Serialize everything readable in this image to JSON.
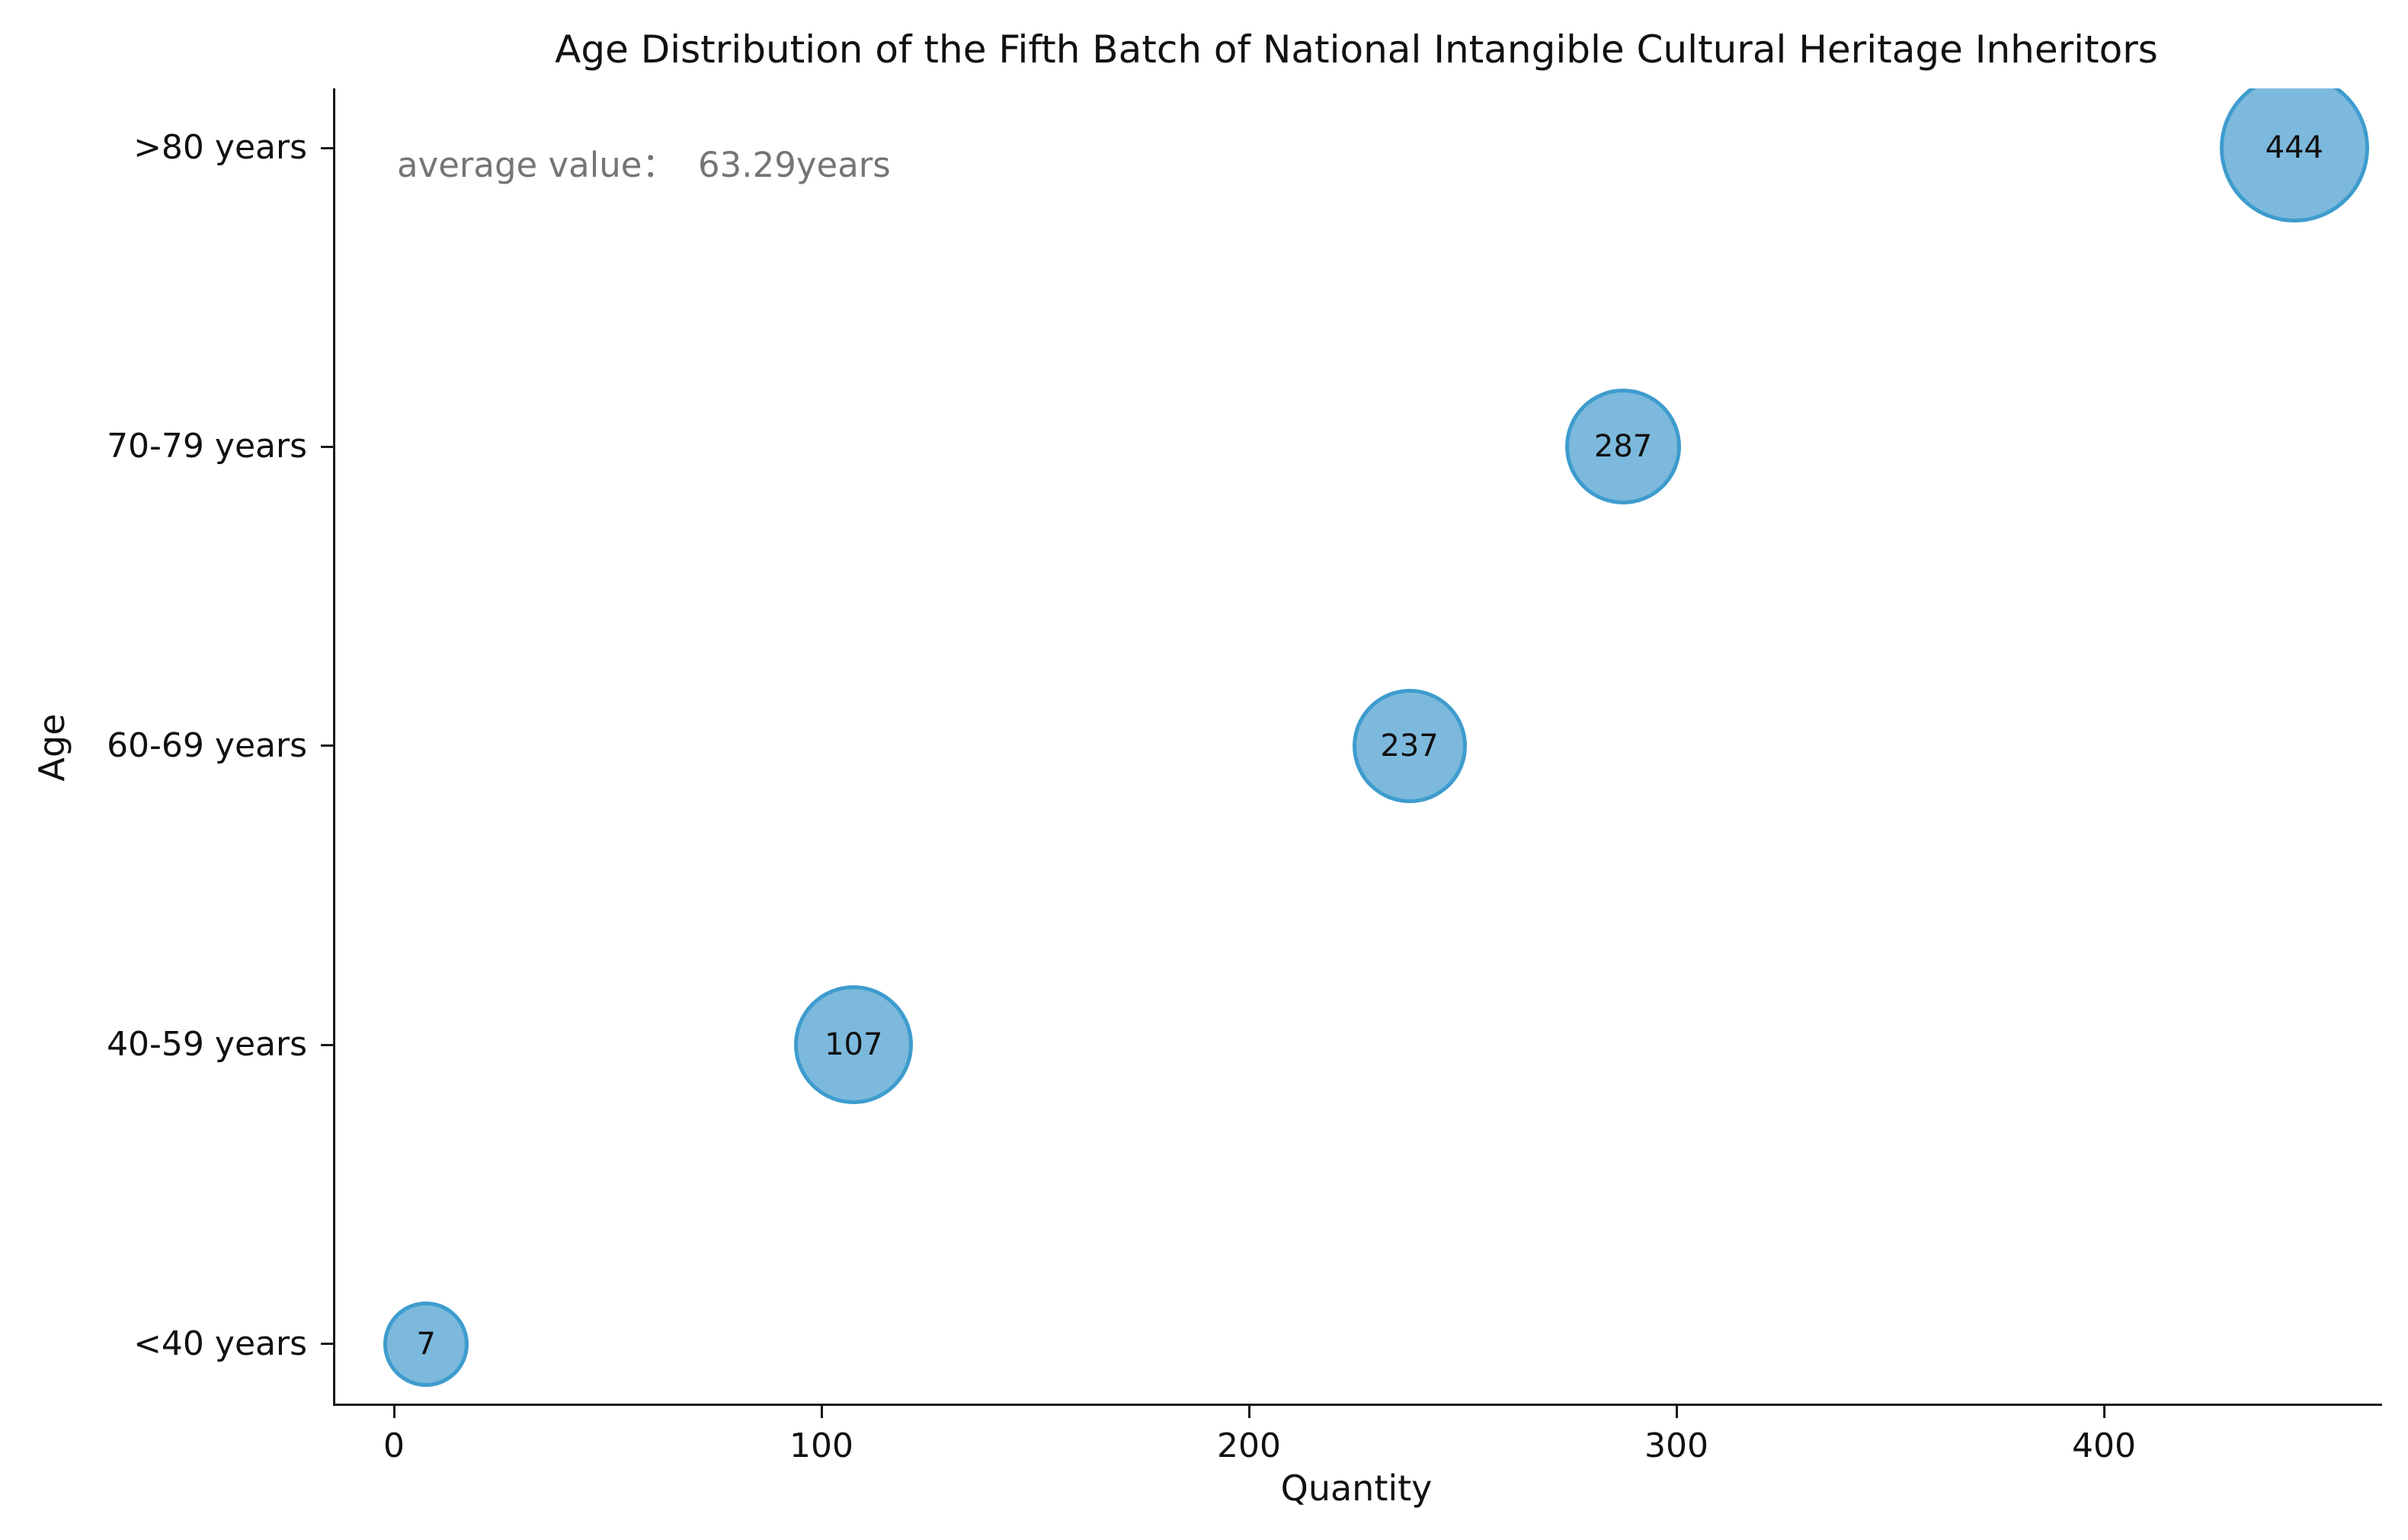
{
  "chart_data": {
    "type": "scatter",
    "subtype": "bubble",
    "title": "Age Distribution of the Fifth Batch of National Intangible Cultural Heritage Inheritors",
    "xlabel": "Quantity",
    "ylabel": "Age",
    "annotation": "average value：  63.29years",
    "average_value_years": 63.29,
    "categories_top_to_bottom": [
      ">80 years",
      "70-79 years",
      "60-69 years",
      "40-59 years",
      "<40 years"
    ],
    "points": [
      {
        "category": ">80 years",
        "value": 444,
        "label": "444",
        "radius_px": 98
      },
      {
        "category": "70-79 years",
        "value": 287,
        "label": "287",
        "radius_px": 76
      },
      {
        "category": "60-69 years",
        "value": 237,
        "label": "237",
        "radius_px": 75
      },
      {
        "category": "40-59 years",
        "value": 107,
        "label": "107",
        "radius_px": 78
      },
      {
        "category": "<40 years",
        "value": 7,
        "label": "7",
        "radius_px": 56
      }
    ],
    "x_ticks": [
      0,
      100,
      200,
      300,
      400
    ],
    "xlim": [
      -14.3,
      464.6
    ],
    "grid": false,
    "legend": null,
    "colors": {
      "bubble_fill": "#7cb9dc",
      "bubble_edge": "#3e9cce",
      "annotation_text": "#757575",
      "axis_text": "#111111",
      "spine": "#1a1a1a"
    }
  }
}
